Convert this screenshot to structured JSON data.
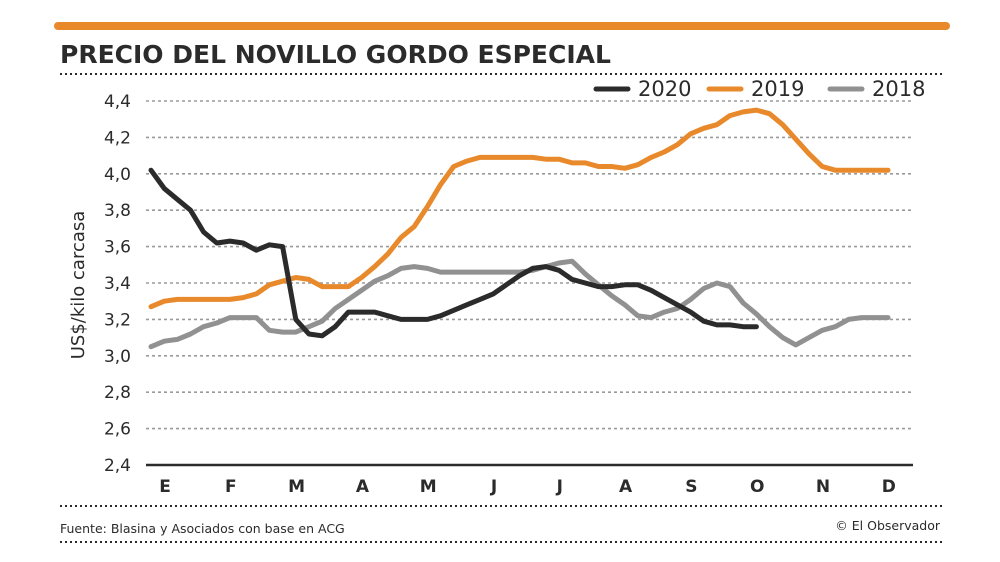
{
  "colors": {
    "accent": "#e8892b",
    "dark": "#2b2b2b",
    "gray": "#919191",
    "grid": "#9a9a9a"
  },
  "footer": {
    "source": "Fuente: Blasina y Asociados con base en ACG",
    "credit": "© El Observador"
  },
  "chart_data": {
    "type": "line",
    "title": "PRECIO DEL NOVILLO GORDO ESPECIAL",
    "ylabel": "US$/kilo carcasa",
    "xlabel": "",
    "ylim": [
      2.4,
      4.4
    ],
    "yticks": [
      "2,4",
      "2,6",
      "2,8",
      "3,0",
      "3,2",
      "3,4",
      "3,6",
      "3,8",
      "4,0",
      "4,2",
      "4,4"
    ],
    "ytick_values": [
      2.4,
      2.6,
      2.8,
      3.0,
      3.2,
      3.4,
      3.6,
      3.8,
      4.0,
      4.2,
      4.4
    ],
    "categories": [
      "E",
      "F",
      "M",
      "A",
      "M",
      "J",
      "J",
      "A",
      "S",
      "O",
      "N",
      "D"
    ],
    "grid": true,
    "legend": "top-right",
    "series": [
      {
        "name": "2020",
        "color": "#2b2b2b",
        "x": [
          0,
          0.2,
          0.4,
          0.6,
          0.8,
          1.0,
          1.2,
          1.4,
          1.6,
          1.8,
          2.0,
          2.2,
          2.4,
          2.6,
          2.8,
          3.0,
          3.2,
          3.4,
          3.6,
          3.8,
          4.0,
          4.2,
          4.4,
          4.6,
          4.8,
          5.0,
          5.2,
          5.4,
          5.6,
          5.8,
          6.0,
          6.2,
          6.4,
          6.6,
          6.8,
          7.0,
          7.2,
          7.4,
          7.6,
          7.8,
          8.0,
          8.2,
          8.4,
          8.6,
          8.8,
          9.0,
          9.2
        ],
        "values": [
          4.02,
          3.92,
          3.86,
          3.8,
          3.68,
          3.62,
          3.63,
          3.62,
          3.58,
          3.61,
          3.6,
          3.2,
          3.12,
          3.11,
          3.16,
          3.24,
          3.24,
          3.24,
          3.22,
          3.2,
          3.2,
          3.2,
          3.22,
          3.25,
          3.28,
          3.31,
          3.34,
          3.39,
          3.44,
          3.48,
          3.49,
          3.47,
          3.42,
          3.4,
          3.38,
          3.38,
          3.39,
          3.39,
          3.36,
          3.32,
          3.28,
          3.24,
          3.19,
          3.17,
          3.17,
          3.16,
          3.16
        ]
      },
      {
        "name": "2019",
        "color": "#e8892b",
        "x": [
          0,
          0.2,
          0.4,
          0.6,
          0.8,
          1.0,
          1.2,
          1.4,
          1.6,
          1.8,
          2.0,
          2.2,
          2.4,
          2.6,
          2.8,
          3.0,
          3.2,
          3.4,
          3.6,
          3.8,
          4.0,
          4.2,
          4.4,
          4.6,
          4.8,
          5.0,
          5.2,
          5.4,
          5.6,
          5.8,
          6.0,
          6.2,
          6.4,
          6.6,
          6.8,
          7.0,
          7.2,
          7.4,
          7.6,
          7.8,
          8.0,
          8.2,
          8.4,
          8.6,
          8.8,
          9.0,
          9.2,
          9.4,
          9.6,
          9.8,
          10.0,
          10.2,
          10.4,
          10.6,
          10.8,
          11.0,
          11.2
        ],
        "values": [
          3.27,
          3.3,
          3.31,
          3.31,
          3.31,
          3.31,
          3.31,
          3.32,
          3.34,
          3.39,
          3.41,
          3.43,
          3.42,
          3.38,
          3.38,
          3.38,
          3.43,
          3.49,
          3.56,
          3.65,
          3.71,
          3.82,
          3.94,
          4.04,
          4.07,
          4.09,
          4.09,
          4.09,
          4.09,
          4.09,
          4.08,
          4.08,
          4.06,
          4.06,
          4.04,
          4.04,
          4.03,
          4.05,
          4.09,
          4.12,
          4.16,
          4.22,
          4.25,
          4.27,
          4.32,
          4.34,
          4.35,
          4.33,
          4.27,
          4.19,
          4.11,
          4.04,
          4.02,
          4.02,
          4.02,
          4.02,
          4.02
        ]
      },
      {
        "name": "2018",
        "color": "#919191",
        "x": [
          0,
          0.2,
          0.4,
          0.6,
          0.8,
          1.0,
          1.2,
          1.4,
          1.6,
          1.8,
          2.0,
          2.2,
          2.4,
          2.6,
          2.8,
          3.0,
          3.2,
          3.4,
          3.6,
          3.8,
          4.0,
          4.2,
          4.4,
          4.6,
          4.8,
          5.0,
          5.2,
          5.4,
          5.6,
          5.8,
          6.0,
          6.2,
          6.4,
          6.6,
          6.8,
          7.0,
          7.2,
          7.4,
          7.6,
          7.8,
          8.0,
          8.2,
          8.4,
          8.6,
          8.8,
          9.0,
          9.2,
          9.4,
          9.6,
          9.8,
          10.0,
          10.2,
          10.4,
          10.6,
          10.8,
          11.0,
          11.2
        ],
        "values": [
          3.05,
          3.08,
          3.09,
          3.12,
          3.16,
          3.18,
          3.21,
          3.21,
          3.21,
          3.14,
          3.13,
          3.13,
          3.16,
          3.19,
          3.26,
          3.31,
          3.36,
          3.41,
          3.44,
          3.48,
          3.49,
          3.48,
          3.46,
          3.46,
          3.46,
          3.46,
          3.46,
          3.46,
          3.46,
          3.47,
          3.49,
          3.51,
          3.52,
          3.45,
          3.39,
          3.33,
          3.28,
          3.22,
          3.21,
          3.24,
          3.26,
          3.31,
          3.37,
          3.4,
          3.38,
          3.29,
          3.23,
          3.16,
          3.1,
          3.06,
          3.1,
          3.14,
          3.16,
          3.2,
          3.21,
          3.21,
          3.21
        ]
      }
    ]
  }
}
